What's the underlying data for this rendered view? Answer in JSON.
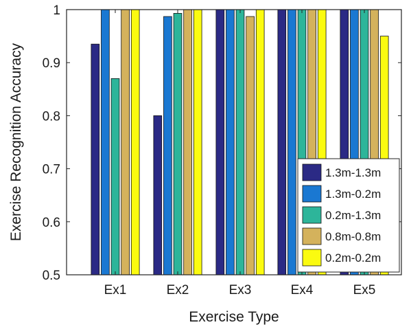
{
  "chart_data": {
    "type": "bar",
    "title": "",
    "xlabel": "Exercise Type",
    "ylabel": "Exercise Recognition Accuracy",
    "ylim": [
      0.5,
      1.0
    ],
    "yticks": [
      "0.5",
      "0.6",
      "0.7",
      "0.8",
      "0.9",
      "1"
    ],
    "categories": [
      "Ex1",
      "Ex2",
      "Ex3",
      "Ex4",
      "Ex5"
    ],
    "series": [
      {
        "name": "1.3m-1.3m",
        "color": "#2b2a85",
        "values": [
          0.935,
          0.8,
          1.0,
          1.0,
          1.0
        ]
      },
      {
        "name": "1.3m-0.2m",
        "color": "#1a78d2",
        "values": [
          1.0,
          0.987,
          1.0,
          1.0,
          1.0
        ]
      },
      {
        "name": "0.2m-1.3m",
        "color": "#2db59a",
        "values": [
          0.87,
          0.993,
          1.0,
          1.0,
          1.0
        ]
      },
      {
        "name": "0.8m-0.8m",
        "color": "#d4b25c",
        "values": [
          1.0,
          1.0,
          0.987,
          1.0,
          1.0
        ]
      },
      {
        "name": "0.2m-0.2m",
        "color": "#fbfb10",
        "values": [
          1.0,
          1.0,
          1.0,
          1.0,
          0.95
        ]
      }
    ],
    "grid": false,
    "legend_position": "bottom-right"
  }
}
